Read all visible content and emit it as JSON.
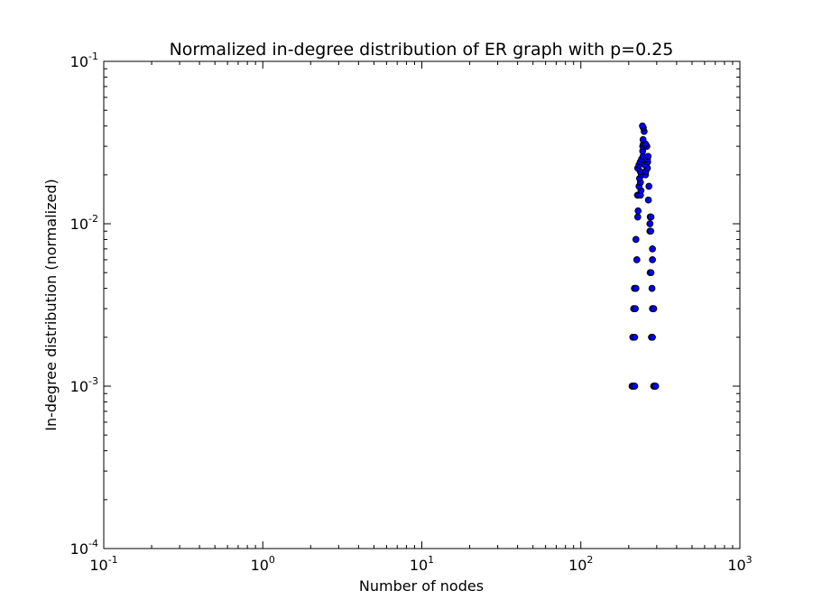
{
  "chart_data": {
    "type": "scatter",
    "title": "Normalized in-degree distribution of ER graph with p=0.25",
    "xlabel": "Number of nodes",
    "ylabel": "In-degree distribution (normalized)",
    "xscale": "log",
    "yscale": "log",
    "xlim": [
      0.1,
      1000
    ],
    "ylim": [
      0.0001,
      0.1
    ],
    "x_ticks": [
      {
        "base": "10",
        "exp": "-1",
        "value": 0.1
      },
      {
        "base": "10",
        "exp": "0",
        "value": 1
      },
      {
        "base": "10",
        "exp": "1",
        "value": 10
      },
      {
        "base": "10",
        "exp": "2",
        "value": 100
      },
      {
        "base": "10",
        "exp": "3",
        "value": 1000
      }
    ],
    "y_ticks": [
      {
        "base": "10",
        "exp": "-4",
        "value": 0.0001
      },
      {
        "base": "10",
        "exp": "-3",
        "value": 0.001
      },
      {
        "base": "10",
        "exp": "-2",
        "value": 0.01
      },
      {
        "base": "10",
        "exp": "-1",
        "value": 0.1
      }
    ],
    "grid": false,
    "marker_color": "#0000ff",
    "marker_edge_color": "#000000",
    "points": [
      [
        210,
        0.001
      ],
      [
        213,
        0.001
      ],
      [
        218,
        0.001
      ],
      [
        287,
        0.001
      ],
      [
        290,
        0.001
      ],
      [
        295,
        0.001
      ],
      [
        212,
        0.002
      ],
      [
        218,
        0.002
      ],
      [
        278,
        0.002
      ],
      [
        282,
        0.002
      ],
      [
        215,
        0.003
      ],
      [
        220,
        0.003
      ],
      [
        282,
        0.003
      ],
      [
        287,
        0.003
      ],
      [
        217,
        0.004
      ],
      [
        222,
        0.004
      ],
      [
        280,
        0.004
      ],
      [
        273,
        0.005
      ],
      [
        276,
        0.005
      ],
      [
        225,
        0.006
      ],
      [
        282,
        0.006
      ],
      [
        282,
        0.007
      ],
      [
        222,
        0.008
      ],
      [
        272,
        0.009
      ],
      [
        275,
        0.009
      ],
      [
        272,
        0.01
      ],
      [
        228,
        0.011
      ],
      [
        273,
        0.011
      ],
      [
        276,
        0.011
      ],
      [
        229,
        0.012
      ],
      [
        266,
        0.014
      ],
      [
        227,
        0.015
      ],
      [
        231,
        0.015
      ],
      [
        237,
        0.015
      ],
      [
        239,
        0.016
      ],
      [
        232,
        0.017
      ],
      [
        268,
        0.017
      ],
      [
        237,
        0.018
      ],
      [
        234,
        0.019
      ],
      [
        240,
        0.02
      ],
      [
        255,
        0.02
      ],
      [
        236,
        0.021
      ],
      [
        256,
        0.021
      ],
      [
        228,
        0.022
      ],
      [
        262,
        0.022
      ],
      [
        232,
        0.023
      ],
      [
        253,
        0.023
      ],
      [
        236,
        0.024
      ],
      [
        263,
        0.024
      ],
      [
        241,
        0.025
      ],
      [
        262,
        0.025
      ],
      [
        246,
        0.026
      ],
      [
        265,
        0.026
      ],
      [
        245,
        0.028
      ],
      [
        245,
        0.03
      ],
      [
        260,
        0.03
      ],
      [
        247,
        0.031
      ],
      [
        255,
        0.031
      ],
      [
        246,
        0.033
      ],
      [
        250,
        0.037
      ],
      [
        247,
        0.039
      ],
      [
        244,
        0.04
      ]
    ]
  }
}
